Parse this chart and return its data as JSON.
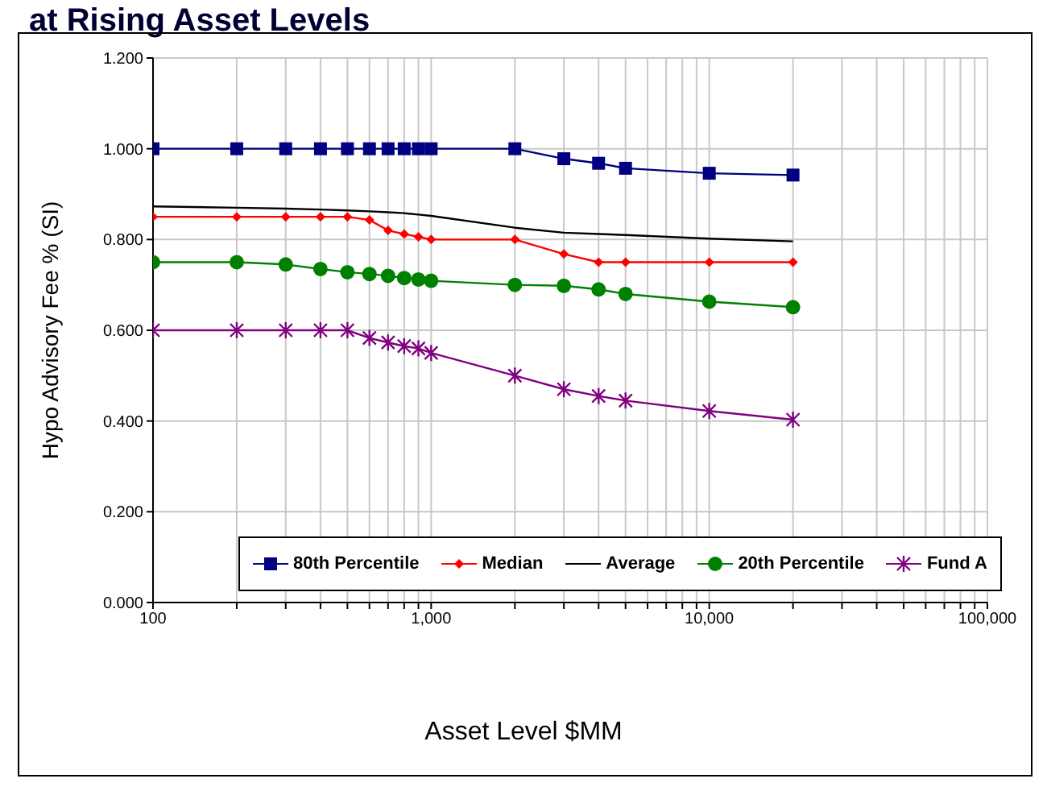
{
  "chart_data": {
    "type": "line",
    "title": "at Rising Asset Levels",
    "xlabel": "Asset Level $MM",
    "ylabel": "Hypo Advisory Fee % (SI)",
    "x": [
      100,
      200,
      300,
      400,
      500,
      600,
      700,
      800,
      900,
      1000,
      2000,
      3000,
      4000,
      5000,
      10000,
      20000
    ],
    "log": "x",
    "grid": true,
    "legend": "bottom",
    "xlim": [
      100,
      100000
    ],
    "xticks": [
      {
        "value": 100,
        "label": "100"
      },
      {
        "value": 200,
        "label": null
      },
      {
        "value": 300,
        "label": null
      },
      {
        "value": 400,
        "label": null
      },
      {
        "value": 500,
        "label": null
      },
      {
        "value": 600,
        "label": null
      },
      {
        "value": 700,
        "label": null
      },
      {
        "value": 800,
        "label": null
      },
      {
        "value": 900,
        "label": null
      },
      {
        "value": 1000,
        "label": "1,000"
      },
      {
        "value": 2000,
        "label": null
      },
      {
        "value": 3000,
        "label": null
      },
      {
        "value": 4000,
        "label": null
      },
      {
        "value": 5000,
        "label": null
      },
      {
        "value": 6000,
        "label": null
      },
      {
        "value": 7000,
        "label": null
      },
      {
        "value": 8000,
        "label": null
      },
      {
        "value": 9000,
        "label": null
      },
      {
        "value": 10000,
        "label": "10,000"
      },
      {
        "value": 20000,
        "label": null
      },
      {
        "value": 30000,
        "label": null
      },
      {
        "value": 40000,
        "label": null
      },
      {
        "value": 50000,
        "label": null
      },
      {
        "value": 60000,
        "label": null
      },
      {
        "value": 70000,
        "label": null
      },
      {
        "value": 80000,
        "label": null
      },
      {
        "value": 90000,
        "label": null
      },
      {
        "value": 100000,
        "label": "100,000"
      }
    ],
    "ylim": [
      0,
      1.2
    ],
    "yticks": [
      {
        "value": 0,
        "label": "0.000"
      },
      {
        "value": 0.2,
        "label": "0.200"
      },
      {
        "value": 0.4,
        "label": "0.400"
      },
      {
        "value": 0.6,
        "label": "0.600"
      },
      {
        "value": 0.8,
        "label": "0.800"
      },
      {
        "value": 1,
        "label": "1.000"
      },
      {
        "value": 1.2,
        "label": "1.200"
      }
    ],
    "series": [
      {
        "name": "80th Percentile",
        "color": "#000080",
        "marker": "square",
        "values": [
          1,
          1,
          1,
          1,
          1,
          1,
          1,
          1,
          1,
          1,
          1,
          0.978,
          0.968,
          0.957,
          0.946,
          0.942
        ]
      },
      {
        "name": "Median",
        "color": "#ff0000",
        "marker": "diamond",
        "values": [
          0.85,
          0.85,
          0.85,
          0.85,
          0.85,
          0.843,
          0.82,
          0.812,
          0.806,
          0.8,
          0.8,
          0.768,
          0.75,
          0.75,
          0.75,
          0.75
        ]
      },
      {
        "name": "Average",
        "color": "#000000",
        "marker": "none",
        "values": [
          0.873,
          0.87,
          0.868,
          0.866,
          0.864,
          0.862,
          0.86,
          0.858,
          0.855,
          0.852,
          0.826,
          0.815,
          0.812,
          0.81,
          0.802,
          0.796
        ]
      },
      {
        "name": "20th Percentile",
        "color": "#008000",
        "marker": "circle",
        "values": [
          0.75,
          0.75,
          0.745,
          0.735,
          0.728,
          0.724,
          0.72,
          0.715,
          0.712,
          0.709,
          0.7,
          0.698,
          0.69,
          0.68,
          0.663,
          0.651
        ]
      },
      {
        "name": "Fund A",
        "color": "#800080",
        "marker": "cross",
        "values": [
          0.6,
          0.6,
          0.6,
          0.6,
          0.6,
          0.583,
          0.573,
          0.565,
          0.56,
          0.55,
          0.5,
          0.47,
          0.455,
          0.445,
          0.422,
          0.403
        ]
      }
    ]
  }
}
